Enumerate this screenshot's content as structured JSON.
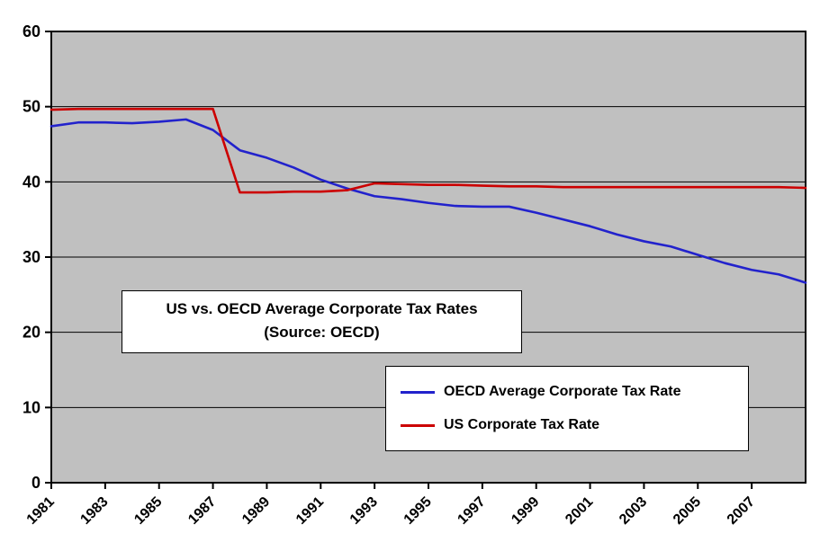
{
  "chart_data": {
    "type": "line",
    "title": "US vs. OECD Average Corporate Tax Rates",
    "subtitle": "(Source: OECD)",
    "xlabel": "",
    "ylabel": "",
    "ylim": [
      0,
      60
    ],
    "y_ticks": [
      0,
      10,
      20,
      30,
      40,
      50,
      60
    ],
    "grid": "horizontal",
    "plot_background": "#c0c0c0",
    "legend_position": "inside-lower-right",
    "x": [
      1981,
      1982,
      1983,
      1984,
      1985,
      1986,
      1987,
      1988,
      1989,
      1990,
      1991,
      1992,
      1993,
      1994,
      1995,
      1996,
      1997,
      1998,
      1999,
      2000,
      2001,
      2002,
      2003,
      2004,
      2005,
      2006,
      2007,
      2008,
      2009
    ],
    "x_tick_labels": [
      "1981",
      "1983",
      "1985",
      "1987",
      "1989",
      "1991",
      "1993",
      "1995",
      "1997",
      "1999",
      "2001",
      "2003",
      "2005",
      "2007"
    ],
    "series": [
      {
        "name": "OECD Average Corporate Tax Rate",
        "color": "#2222cc",
        "values": [
          47.4,
          47.9,
          47.9,
          47.8,
          48.0,
          48.3,
          46.9,
          44.2,
          43.2,
          41.9,
          40.3,
          39.1,
          38.1,
          37.7,
          37.2,
          36.8,
          36.7,
          36.7,
          35.9,
          35.0,
          34.1,
          33.0,
          32.1,
          31.4,
          30.3,
          29.2,
          28.3,
          27.7,
          26.6
        ]
      },
      {
        "name": "US Corporate Tax Rate",
        "color": "#cc0000",
        "values": [
          49.6,
          49.7,
          49.7,
          49.7,
          49.7,
          49.7,
          49.7,
          38.6,
          38.6,
          38.7,
          38.7,
          38.9,
          39.8,
          39.7,
          39.6,
          39.6,
          39.5,
          39.4,
          39.4,
          39.3,
          39.3,
          39.3,
          39.3,
          39.3,
          39.3,
          39.3,
          39.3,
          39.3,
          39.2
        ]
      }
    ]
  }
}
